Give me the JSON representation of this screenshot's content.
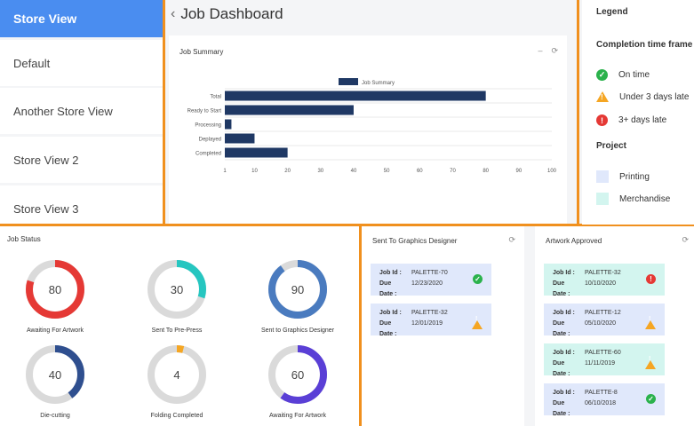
{
  "sidebar": {
    "items": [
      {
        "label": "Store View",
        "active": true
      },
      {
        "label": "Default"
      },
      {
        "label": "Another Store View"
      },
      {
        "label": "Store View 2"
      },
      {
        "label": "Store View 3"
      }
    ]
  },
  "header": {
    "title": "Job Dashboard"
  },
  "job_summary": {
    "title": "Job Summary",
    "chart_data": {
      "type": "bar",
      "orientation": "horizontal",
      "categories": [
        "Total",
        "Ready to Start",
        "Processing",
        "Deplayed",
        "Completed"
      ],
      "series": [
        {
          "name": "Job Summary",
          "values": [
            80,
            40,
            3,
            10,
            20
          ]
        }
      ],
      "x_ticks": [
        1,
        10,
        20,
        30,
        40,
        50,
        60,
        70,
        80,
        90,
        100
      ],
      "xlim": [
        1,
        100
      ],
      "color": "#1f3864"
    }
  },
  "legend": {
    "title": "Legend",
    "completion_title": "Completion time frame",
    "completion": [
      {
        "label": "On time",
        "icon": "check-circle-icon",
        "color": "#2bb24c"
      },
      {
        "label": "Under 3 days late",
        "icon": "warning-triangle-icon",
        "color": "#f5a623"
      },
      {
        "label": "3+ days late",
        "icon": "alert-circle-icon",
        "color": "#e53935"
      }
    ],
    "project_title": "Project",
    "projects": [
      {
        "label": "Printing",
        "color": "#e0e8fb"
      },
      {
        "label": "Merchandise",
        "color": "#d3f5ef"
      }
    ]
  },
  "job_status": {
    "title": "Job Status",
    "donuts": [
      {
        "value": "80",
        "percent": 80,
        "label": "Awaiting For Artwork",
        "color": "#e53935"
      },
      {
        "value": "30",
        "percent": 30,
        "label": "Sent To Pre-Press",
        "color": "#26c6c0"
      },
      {
        "value": "90",
        "percent": 90,
        "label": "Sent to Graphics Designer",
        "color": "#4a7bbf"
      },
      {
        "value": "40",
        "percent": 40,
        "label": "Die-cutting",
        "color": "#2f4f8f"
      },
      {
        "value": "4",
        "percent": 4,
        "label": "Folding Completed",
        "color": "#f5a623"
      },
      {
        "value": "60",
        "percent": 60,
        "label": "Awaiting For Artwork",
        "color": "#5a3fd6"
      }
    ]
  },
  "graphics": {
    "title": "Sent To Graphics Designer",
    "job_id_label": "Job Id :",
    "due_label": "Due Date :",
    "jobs": [
      {
        "id": "PALETTE-70",
        "due": "12/23/2020",
        "status": "on-time",
        "project": "printing"
      },
      {
        "id": "PALETTE-32",
        "due": "12/01/2019",
        "status": "warning",
        "project": "printing"
      }
    ]
  },
  "artwork": {
    "title": "Artwork Approved",
    "job_id_label": "Job Id :",
    "due_label": "Due Date :",
    "jobs": [
      {
        "id": "PALETTE-32",
        "due": "10/10/2020",
        "status": "late",
        "project": "merchandise"
      },
      {
        "id": "PALETTE-12",
        "due": "05/10/2020",
        "status": "warning",
        "project": "printing"
      },
      {
        "id": "PALETTE-60",
        "due": "11/11/2019",
        "status": "warning",
        "project": "merchandise"
      },
      {
        "id": "PALETTE-8",
        "due": "06/10/2018",
        "status": "on-time",
        "project": "printing"
      }
    ]
  }
}
